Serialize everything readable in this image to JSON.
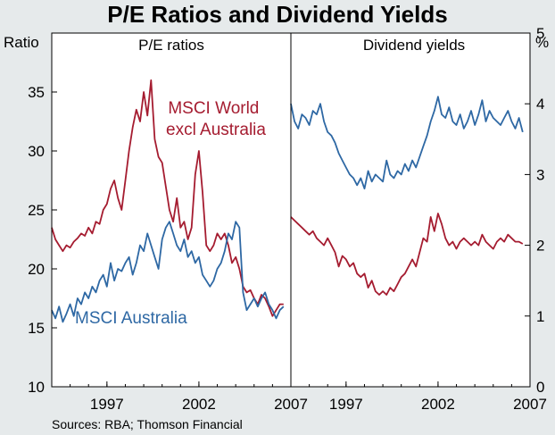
{
  "title": "P/E Ratios and Dividend Yields",
  "source": "Sources: RBA; Thomson Financial",
  "colors": {
    "background": "#e6eaeb",
    "plot_background": "#ffffff",
    "msci_world": "#a51c30",
    "msci_australia": "#2e68a4",
    "axis": "#000000",
    "grid": "#b8bec3"
  },
  "chart_data": [
    {
      "type": "line",
      "panel": "left",
      "title": "P/E ratios",
      "ylabel": "Ratio",
      "ylim": [
        10,
        40
      ],
      "yticks": [
        10,
        15,
        20,
        25,
        30,
        35
      ],
      "xlim": [
        1994,
        2007
      ],
      "xticks": [
        "1997",
        "2002",
        "2007"
      ],
      "xtick_values": [
        1997,
        2002,
        2007
      ],
      "series": [
        {
          "name": "MSCI World excl Australia",
          "label_lines": [
            "MSCI World",
            "excl Australia"
          ],
          "color": "#a51c30",
          "x": [
            1994.0,
            1994.2,
            1994.4,
            1994.6,
            1994.8,
            1995.0,
            1995.2,
            1995.4,
            1995.6,
            1995.8,
            1996.0,
            1996.2,
            1996.4,
            1996.6,
            1996.8,
            1997.0,
            1997.2,
            1997.4,
            1997.6,
            1997.8,
            1998.0,
            1998.2,
            1998.4,
            1998.6,
            1998.8,
            1999.0,
            1999.2,
            1999.4,
            1999.6,
            1999.8,
            2000.0,
            2000.2,
            2000.4,
            2000.6,
            2000.8,
            2001.0,
            2001.2,
            2001.4,
            2001.6,
            2001.8,
            2002.0,
            2002.2,
            2002.4,
            2002.6,
            2002.8,
            2003.0,
            2003.2,
            2003.4,
            2003.6,
            2003.8,
            2004.0,
            2004.2,
            2004.4,
            2004.6,
            2004.8,
            2005.0,
            2005.2,
            2005.4,
            2005.6,
            2005.8,
            2006.0,
            2006.2,
            2006.4,
            2006.6
          ],
          "values": [
            23.5,
            22.5,
            22.0,
            21.5,
            22.0,
            21.8,
            22.3,
            22.6,
            23.0,
            22.8,
            23.5,
            23.0,
            24.0,
            23.8,
            25.0,
            25.5,
            26.8,
            27.5,
            26.0,
            25.0,
            27.5,
            30.0,
            32.0,
            33.5,
            32.5,
            35.0,
            33.0,
            36.0,
            31.0,
            29.5,
            29.0,
            27.0,
            25.0,
            24.0,
            26.0,
            23.5,
            24.0,
            22.5,
            23.5,
            28.0,
            30.0,
            26.5,
            22.0,
            21.5,
            22.0,
            23.0,
            22.5,
            23.0,
            22.0,
            20.5,
            21.0,
            20.0,
            18.5,
            18.0,
            18.2,
            17.5,
            17.0,
            17.8,
            17.5,
            16.8,
            16.0,
            16.5,
            17.0,
            17.0
          ]
        },
        {
          "name": "MSCI Australia",
          "label_lines": [
            "MSCI  Australia"
          ],
          "color": "#2e68a4",
          "x": [
            1994.0,
            1994.2,
            1994.4,
            1994.6,
            1994.8,
            1995.0,
            1995.2,
            1995.4,
            1995.6,
            1995.8,
            1996.0,
            1996.2,
            1996.4,
            1996.6,
            1996.8,
            1997.0,
            1997.2,
            1997.4,
            1997.6,
            1997.8,
            1998.0,
            1998.2,
            1998.4,
            1998.6,
            1998.8,
            1999.0,
            1999.2,
            1999.4,
            1999.6,
            1999.8,
            2000.0,
            2000.2,
            2000.4,
            2000.6,
            2000.8,
            2001.0,
            2001.2,
            2001.4,
            2001.6,
            2001.8,
            2002.0,
            2002.2,
            2002.4,
            2002.6,
            2002.8,
            2003.0,
            2003.2,
            2003.4,
            2003.6,
            2003.8,
            2004.0,
            2004.2,
            2004.4,
            2004.6,
            2004.8,
            2005.0,
            2005.2,
            2005.4,
            2005.6,
            2005.8,
            2006.0,
            2006.2,
            2006.4,
            2006.6
          ],
          "values": [
            16.5,
            15.8,
            16.8,
            15.5,
            16.2,
            17.0,
            16.0,
            17.5,
            17.0,
            18.0,
            17.5,
            18.5,
            18.0,
            19.0,
            19.5,
            18.5,
            20.5,
            19.0,
            20.0,
            19.8,
            20.5,
            21.0,
            19.5,
            20.5,
            22.0,
            21.5,
            23.0,
            22.0,
            21.0,
            20.0,
            22.5,
            23.5,
            24.0,
            23.0,
            22.0,
            21.5,
            22.5,
            21.0,
            21.5,
            20.5,
            21.0,
            19.5,
            19.0,
            18.5,
            19.0,
            20.0,
            20.5,
            21.5,
            23.0,
            22.5,
            24.0,
            23.5,
            18.0,
            16.5,
            17.0,
            17.5,
            16.8,
            17.5,
            18.0,
            17.0,
            16.5,
            15.8,
            16.5,
            16.8
          ]
        }
      ]
    },
    {
      "type": "line",
      "panel": "right",
      "title": "Dividend yields",
      "ylabel": "%",
      "ylim": [
        0,
        5
      ],
      "yticks": [
        0,
        1,
        2,
        3,
        4,
        5
      ],
      "xlim": [
        1994,
        2007
      ],
      "xticks": [
        "1997",
        "2002",
        "2007"
      ],
      "xtick_values": [
        1997,
        2002,
        2007
      ],
      "series": [
        {
          "name": "MSCI Australia",
          "color": "#2e68a4",
          "x": [
            1994.0,
            1994.2,
            1994.4,
            1994.6,
            1994.8,
            1995.0,
            1995.2,
            1995.4,
            1995.6,
            1995.8,
            1996.0,
            1996.2,
            1996.4,
            1996.6,
            1996.8,
            1997.0,
            1997.2,
            1997.4,
            1997.6,
            1997.8,
            1998.0,
            1998.2,
            1998.4,
            1998.6,
            1998.8,
            1999.0,
            1999.2,
            1999.4,
            1999.6,
            1999.8,
            2000.0,
            2000.2,
            2000.4,
            2000.6,
            2000.8,
            2001.0,
            2001.2,
            2001.4,
            2001.6,
            2001.8,
            2002.0,
            2002.2,
            2002.4,
            2002.6,
            2002.8,
            2003.0,
            2003.2,
            2003.4,
            2003.6,
            2003.8,
            2004.0,
            2004.2,
            2004.4,
            2004.6,
            2004.8,
            2005.0,
            2005.2,
            2005.4,
            2005.6,
            2005.8,
            2006.0,
            2006.2,
            2006.4,
            2006.6
          ],
          "values": [
            4.0,
            3.75,
            3.65,
            3.85,
            3.8,
            3.7,
            3.9,
            3.85,
            4.0,
            3.75,
            3.6,
            3.55,
            3.45,
            3.3,
            3.2,
            3.1,
            3.0,
            2.95,
            2.85,
            2.95,
            2.8,
            3.05,
            2.9,
            3.0,
            2.95,
            2.9,
            3.2,
            3.0,
            2.95,
            3.05,
            3.0,
            3.15,
            3.05,
            3.2,
            3.1,
            3.25,
            3.4,
            3.55,
            3.75,
            3.9,
            4.1,
            3.85,
            3.8,
            3.95,
            3.75,
            3.7,
            3.85,
            3.65,
            3.75,
            3.9,
            3.7,
            3.85,
            4.05,
            3.75,
            3.9,
            3.8,
            3.75,
            3.7,
            3.8,
            3.9,
            3.75,
            3.65,
            3.8,
            3.6
          ]
        },
        {
          "name": "MSCI World excl Australia",
          "color": "#a51c30",
          "x": [
            1994.0,
            1994.2,
            1994.4,
            1994.6,
            1994.8,
            1995.0,
            1995.2,
            1995.4,
            1995.6,
            1995.8,
            1996.0,
            1996.2,
            1996.4,
            1996.6,
            1996.8,
            1997.0,
            1997.2,
            1997.4,
            1997.6,
            1997.8,
            1998.0,
            1998.2,
            1998.4,
            1998.6,
            1998.8,
            1999.0,
            1999.2,
            1999.4,
            1999.6,
            1999.8,
            2000.0,
            2000.2,
            2000.4,
            2000.6,
            2000.8,
            2001.0,
            2001.2,
            2001.4,
            2001.6,
            2001.8,
            2002.0,
            2002.2,
            2002.4,
            2002.6,
            2002.8,
            2003.0,
            2003.2,
            2003.4,
            2003.6,
            2003.8,
            2004.0,
            2004.2,
            2004.4,
            2004.6,
            2004.8,
            2005.0,
            2005.2,
            2005.4,
            2005.6,
            2005.8,
            2006.0,
            2006.2,
            2006.4,
            2006.6
          ],
          "values": [
            2.4,
            2.35,
            2.3,
            2.25,
            2.2,
            2.15,
            2.2,
            2.1,
            2.05,
            2.0,
            2.1,
            2.0,
            1.9,
            1.7,
            1.85,
            1.8,
            1.7,
            1.75,
            1.6,
            1.55,
            1.6,
            1.4,
            1.5,
            1.35,
            1.3,
            1.35,
            1.3,
            1.4,
            1.35,
            1.45,
            1.55,
            1.6,
            1.7,
            1.8,
            1.7,
            1.9,
            2.1,
            2.05,
            2.4,
            2.2,
            2.45,
            2.3,
            2.1,
            2.0,
            2.05,
            1.95,
            2.05,
            2.1,
            2.05,
            2.0,
            2.05,
            2.0,
            2.15,
            2.05,
            2.0,
            1.95,
            2.05,
            2.1,
            2.05,
            2.15,
            2.1,
            2.05,
            2.05,
            2.02
          ]
        }
      ]
    }
  ]
}
